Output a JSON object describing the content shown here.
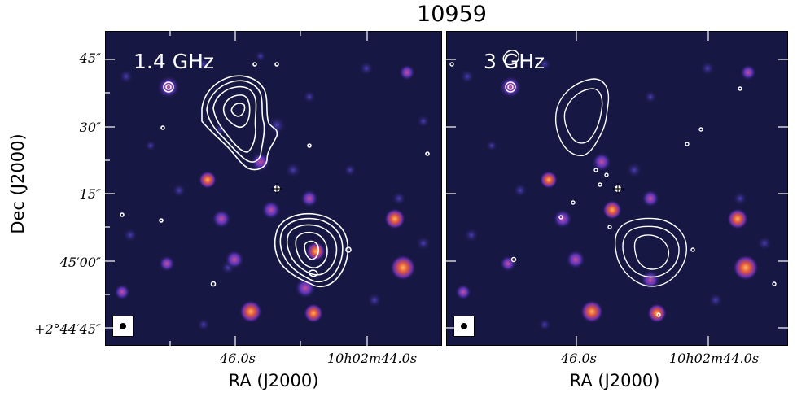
{
  "title": "10959",
  "panels": [
    {
      "label": "1.4 GHz"
    },
    {
      "label": "3 GHz"
    }
  ],
  "axes": {
    "xlabel": "RA (J2000)",
    "ylabel": "Dec (J2000)",
    "yticks": [
      "45″",
      "30″",
      "15″",
      "45′00″",
      "+2°44′45″"
    ],
    "xticks": [
      "46.0s",
      "10h02m44.0s"
    ]
  },
  "colors": {
    "background": "#171744",
    "contour": "#ffffff",
    "source_bright": "#f07a3a",
    "source_mid": "#6f3fc9"
  },
  "icons": {
    "host": "crosshair-icon",
    "beam": "beam-icon"
  }
}
